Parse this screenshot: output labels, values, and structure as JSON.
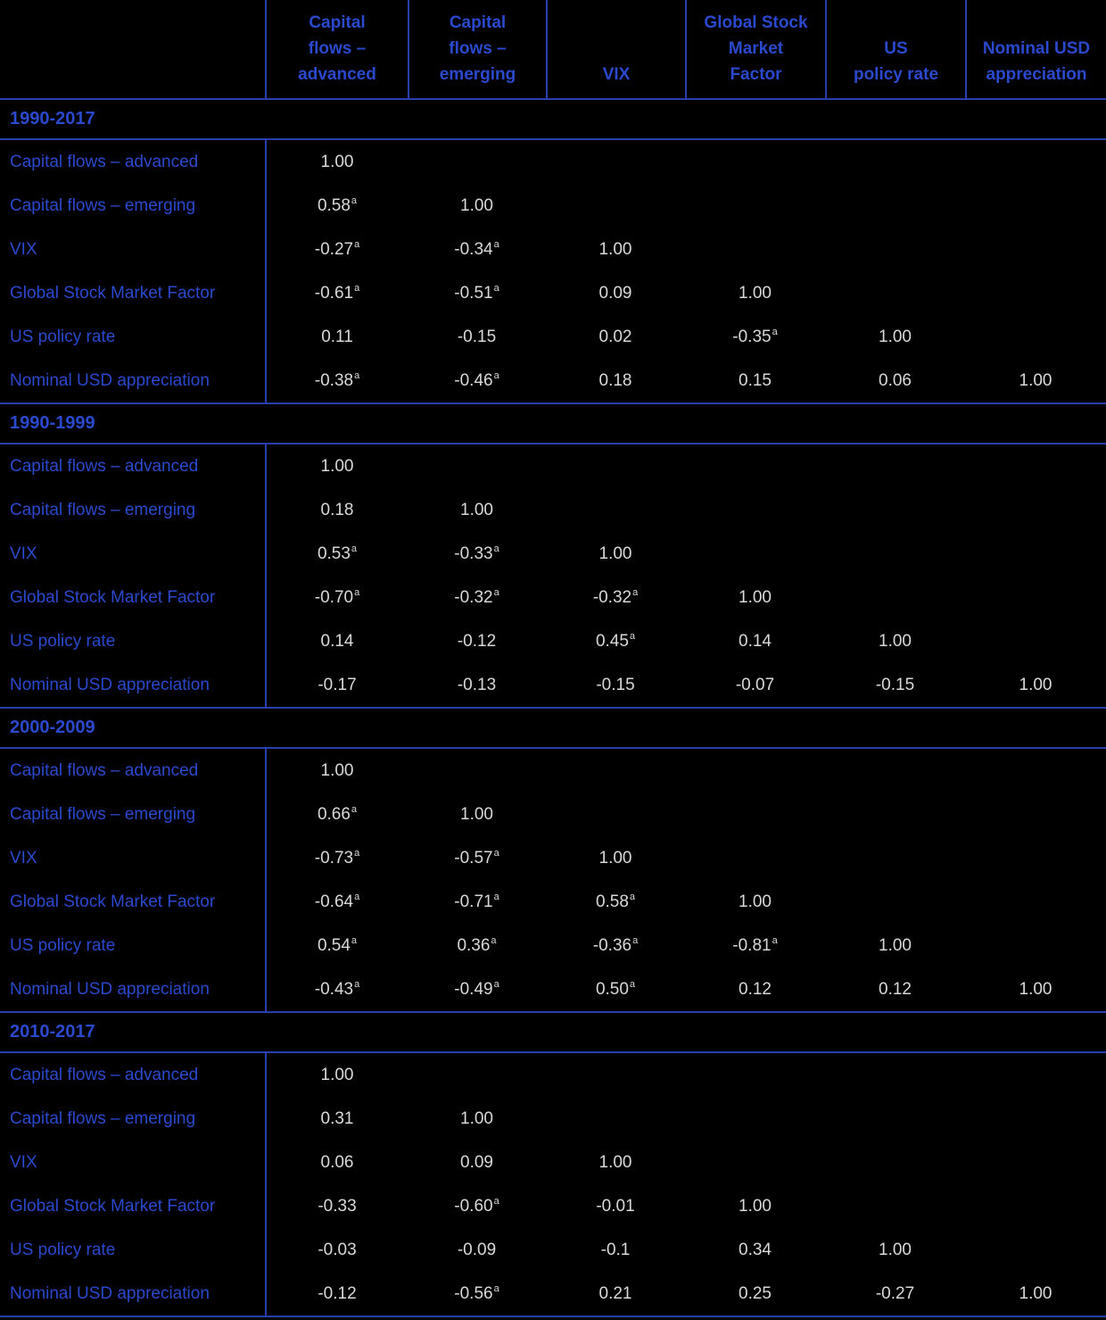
{
  "page": {
    "colors": {
      "bg": "#000000",
      "blue": "#2b49cc",
      "line": "#2a3fae",
      "value": "#d9d9d9"
    }
  },
  "table": {
    "column_headers": [
      {
        "lines": [
          "Capital",
          "flows –",
          "advanced"
        ]
      },
      {
        "lines": [
          "Capital",
          "flows –",
          "emerging"
        ]
      },
      {
        "lines": [
          "VIX"
        ]
      },
      {
        "lines": [
          "Global Stock",
          "Market",
          "Factor"
        ]
      },
      {
        "lines": [
          "US",
          "policy rate"
        ]
      },
      {
        "lines": [
          "Nominal USD",
          "appreciation"
        ]
      }
    ],
    "row_labels": [
      "Capital flows – advanced",
      "Capital flows – emerging",
      "VIX",
      "Global Stock Market Factor",
      "US policy rate",
      "Nominal USD appreciation"
    ],
    "periods": [
      {
        "label": "1990-2017",
        "values": [
          [
            "1.00",
            "",
            "",
            "",
            "",
            ""
          ],
          [
            "0.58ᵃ",
            "1.00",
            "",
            "",
            "",
            ""
          ],
          [
            "-0.27ᵃ",
            "-0.34ᵃ",
            "1.00",
            "",
            "",
            ""
          ],
          [
            "-0.61ᵃ",
            "-0.51ᵃ",
            "0.09",
            "1.00",
            "",
            ""
          ],
          [
            "0.11",
            "-0.15",
            "0.02",
            "-0.35ᵃ",
            "1.00",
            ""
          ],
          [
            "-0.38ᵃ",
            "-0.46ᵃ",
            "0.18",
            "0.15",
            "0.06",
            "1.00"
          ]
        ]
      },
      {
        "label": "1990-1999",
        "values": [
          [
            "1.00",
            "",
            "",
            "",
            "",
            ""
          ],
          [
            "0.18",
            "1.00",
            "",
            "",
            "",
            ""
          ],
          [
            "0.53ᵃ",
            "-0.33ᵃ",
            "1.00",
            "",
            "",
            ""
          ],
          [
            "-0.70ᵃ",
            "-0.32ᵃ",
            "-0.32ᵃ",
            "1.00",
            "",
            ""
          ],
          [
            "0.14",
            "-0.12",
            "0.45ᵃ",
            "0.14",
            "1.00",
            ""
          ],
          [
            "-0.17",
            "-0.13",
            "-0.15",
            "-0.07",
            "-0.15",
            "1.00"
          ]
        ]
      },
      {
        "label": "2000-2009",
        "values": [
          [
            "1.00",
            "",
            "",
            "",
            "",
            ""
          ],
          [
            "0.66ᵃ",
            "1.00",
            "",
            "",
            "",
            ""
          ],
          [
            "-0.73ᵃ",
            "-0.57ᵃ",
            "1.00",
            "",
            "",
            ""
          ],
          [
            "-0.64ᵃ",
            "-0.71ᵃ",
            "0.58ᵃ",
            "1.00",
            "",
            ""
          ],
          [
            "0.54ᵃ",
            "0.36ᵃ",
            "-0.36ᵃ",
            "-0.81ᵃ",
            "1.00",
            ""
          ],
          [
            "-0.43ᵃ",
            "-0.49ᵃ",
            "0.50ᵃ",
            "0.12",
            "0.12",
            "1.00"
          ]
        ]
      },
      {
        "label": "2010-2017",
        "values": [
          [
            "1.00",
            "",
            "",
            "",
            "",
            ""
          ],
          [
            "0.31",
            "1.00",
            "",
            "",
            "",
            ""
          ],
          [
            "0.06",
            "0.09",
            "1.00",
            "",
            "",
            ""
          ],
          [
            "-0.33",
            "-0.60ᵃ",
            "-0.01",
            "1.00",
            "",
            ""
          ],
          [
            "-0.03",
            "-0.09",
            "-0.1",
            "0.34",
            "1.00",
            ""
          ],
          [
            "-0.12",
            "-0.56ᵃ",
            "0.21",
            "0.25",
            "-0.27",
            "1.00"
          ]
        ]
      }
    ]
  }
}
